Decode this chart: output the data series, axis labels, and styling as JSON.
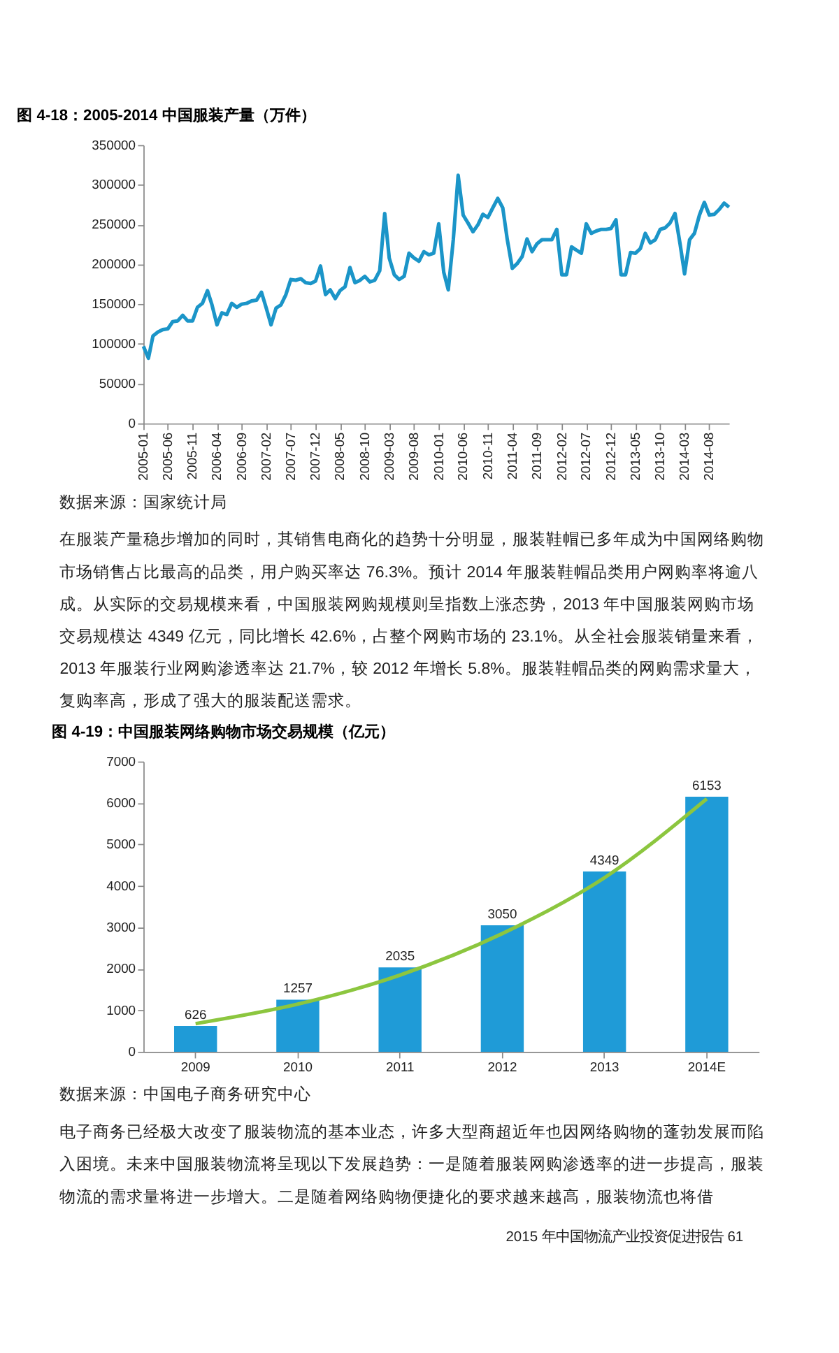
{
  "chart_data": [
    {
      "type": "line",
      "title": "图 4-18：2005-2014 中国服装产量（万件）",
      "x": [
        "2005-01",
        "2005-02",
        "2005-03",
        "2005-04",
        "2005-05",
        "2005-06",
        "2005-07",
        "2005-08",
        "2005-09",
        "2005-10",
        "2005-11",
        "2005-12",
        "2006-01",
        "2006-02",
        "2006-03",
        "2006-04",
        "2006-05",
        "2006-06",
        "2006-07",
        "2006-08",
        "2006-09",
        "2006-10",
        "2006-11",
        "2006-12",
        "2007-01",
        "2007-02",
        "2007-03",
        "2007-04",
        "2007-05",
        "2007-06",
        "2007-07",
        "2007-08",
        "2007-09",
        "2007-10",
        "2007-11",
        "2007-12",
        "2008-01",
        "2008-02",
        "2008-03",
        "2008-04",
        "2008-05",
        "2008-06",
        "2008-07",
        "2008-08",
        "2008-09",
        "2008-10",
        "2008-11",
        "2008-12",
        "2009-01",
        "2009-02",
        "2009-03",
        "2009-04",
        "2009-05",
        "2009-06",
        "2009-07",
        "2009-08",
        "2009-09",
        "2009-10",
        "2009-11",
        "2009-12",
        "2010-01",
        "2010-02",
        "2010-03",
        "2010-04",
        "2010-05",
        "2010-06",
        "2010-07",
        "2010-08",
        "2010-09",
        "2010-10",
        "2010-11",
        "2010-12",
        "2011-01",
        "2011-02",
        "2011-03",
        "2011-04",
        "2011-05",
        "2011-06",
        "2011-07",
        "2011-08",
        "2011-09",
        "2011-10",
        "2011-11",
        "2011-12",
        "2012-01",
        "2012-02",
        "2012-03",
        "2012-04",
        "2012-05",
        "2012-06",
        "2012-07",
        "2012-08",
        "2012-09",
        "2012-10",
        "2012-11",
        "2012-12",
        "2013-01",
        "2013-02",
        "2013-03",
        "2013-04",
        "2013-05",
        "2013-06",
        "2013-07",
        "2013-08",
        "2013-09",
        "2013-10",
        "2013-11",
        "2013-12",
        "2014-01",
        "2014-02",
        "2014-03",
        "2014-04",
        "2014-05",
        "2014-06",
        "2014-07",
        "2014-08",
        "2014-09",
        "2014-10",
        "2014-11",
        "2014-12"
      ],
      "series": [
        {
          "color": "#1b95c8",
          "values": [
            97000,
            82000,
            110000,
            115000,
            118000,
            119000,
            128000,
            129000,
            136000,
            129000,
            129000,
            146000,
            151000,
            167000,
            149000,
            124000,
            139000,
            137000,
            151000,
            146000,
            150000,
            151000,
            154000,
            155000,
            165000,
            144000,
            124000,
            145000,
            149000,
            162000,
            181000,
            180000,
            182000,
            177000,
            176000,
            179000,
            198000,
            162000,
            168000,
            157000,
            167000,
            172000,
            196000,
            177000,
            180000,
            185000,
            178000,
            180000,
            192000,
            264000,
            208000,
            187000,
            181000,
            185000,
            214000,
            208000,
            204000,
            216000,
            212000,
            214000,
            251000,
            190000,
            168000,
            231000,
            312000,
            262000,
            252000,
            241000,
            250000,
            263000,
            259000,
            271000,
            283000,
            271000,
            231000,
            195000,
            201000,
            210000,
            232000,
            216000,
            226000,
            231000,
            231000,
            231000,
            244000,
            187000,
            187000,
            222000,
            218000,
            214000,
            251000,
            239000,
            242000,
            244000,
            244000,
            245000,
            256000,
            187000,
            187000,
            215000,
            214000,
            220000,
            239000,
            227000,
            231000,
            244000,
            246000,
            252000,
            264000,
            226000,
            188000,
            231000,
            239000,
            262000,
            278000,
            262000,
            263000,
            269000,
            277000,
            272000
          ]
        }
      ],
      "xlim": [
        "2005-01",
        "2014-12"
      ],
      "xticks": [
        "2005-01",
        "2005-06",
        "2005-11",
        "2006-04",
        "2006-09",
        "2007-02",
        "2007-07",
        "2007-12",
        "2008-05",
        "2008-10",
        "2009-03",
        "2009-08",
        "2010-01",
        "2010-06",
        "2010-11",
        "2011-04",
        "2011-09",
        "2012-02",
        "2012-07",
        "2012-12",
        "2013-05",
        "2013-10",
        "2014-03",
        "2014-08"
      ],
      "ylim": [
        0,
        350000
      ],
      "yticks": [
        0,
        50000,
        100000,
        150000,
        200000,
        250000,
        300000,
        350000
      ],
      "grid": false,
      "annotations": [
        "数据来源：国家统计局",
        "在服装产量稳步增加的同时，其销售电商化的趋势十分明显，服装鞋帽已多年成为中国网络购物市场销售占比最高的品类，用户购买率达 76.3%。预计 2014 年服装鞋帽品类用户网购率将逾八成。从实际的交易规模来看，中国服装网购规模则呈指数上涨态势，2013 年中国服装网购市场交易规模达 4349 亿元，同比增长 42.6%，占整个网购市场的 23.1%。从全社会服装销量来看，2013 年服装行业网购渗透率达 21.7%，较 2012 年增长 5.8%。服装鞋帽品类的网购需求量大，复购率高，形成了强大的服装配送需求。"
      ]
    },
    {
      "type": "bar",
      "title": "图 4-19：中国服装网络购物市场交易规模（亿元）",
      "categories": [
        "2009",
        "2010",
        "2011",
        "2012",
        "2013",
        "2014E"
      ],
      "series": [
        {
          "type": "bar",
          "color": "#1f9bd7",
          "values": [
            626,
            1257,
            2035,
            3050,
            4349,
            6153
          ],
          "value_labels": [
            "626",
            "1257",
            "2035",
            "3050",
            "4349",
            "6153"
          ]
        },
        {
          "type": "line",
          "color": "#8cc63f",
          "values": [
            680,
            1150,
            1850,
            2850,
            4200,
            6100
          ]
        }
      ],
      "ylim": [
        0,
        7000
      ],
      "yticks": [
        0,
        1000,
        2000,
        3000,
        4000,
        5000,
        6000,
        7000
      ],
      "grid": false,
      "annotations": [
        "数据来源：中国电子商务研究中心",
        "电子商务已经极大改变了服装物流的基本业态，许多大型商超近年也因网络购物的蓬勃发展而陷入困境。未来中国服装物流将呈现以下发展趋势：一是随着服装网购渗透率的进一步提高，服装物流的需求量将进一步增大。二是随着网络购物便捷化的要求越来越高，服装物流也将借",
        "2015 年中国物流产业投资促进报告 61"
      ]
    }
  ]
}
